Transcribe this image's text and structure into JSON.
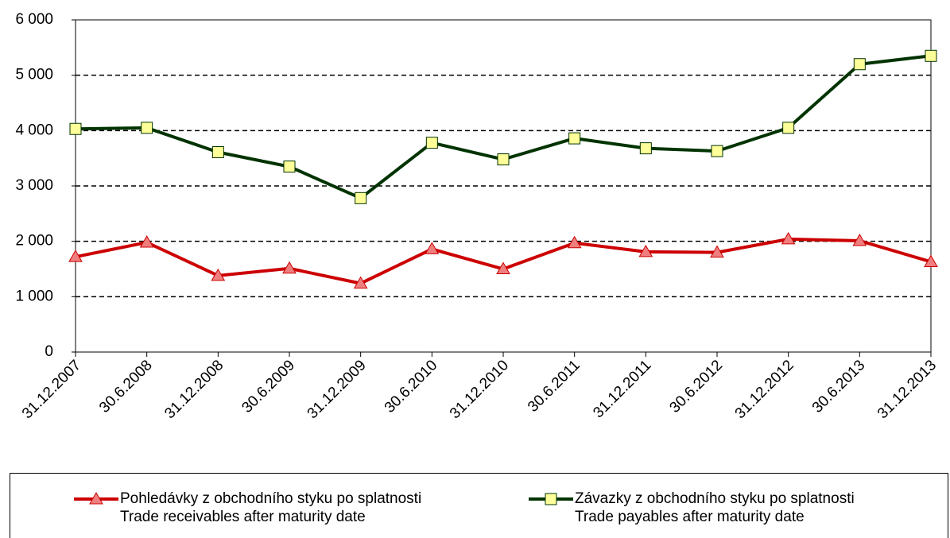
{
  "chart_data": {
    "type": "line",
    "categories": [
      "31.12.2007",
      "30.6.2008",
      "31.12.2008",
      "30.6.2009",
      "31.12.2009",
      "30.6.2010",
      "31.12.2010",
      "30.6.2011",
      "31.12.2011",
      "30.6.2012",
      "31.12.2012",
      "30.6.2013",
      "31.12.2013"
    ],
    "series": [
      {
        "name": "Pohledávky z obchodního styku po splatnosti\nTrade receivables after maturity date",
        "color": "#cc0000",
        "marker": "triangle",
        "marker_color": "#ef7f7f",
        "values": [
          1720,
          1980,
          1380,
          1510,
          1240,
          1860,
          1500,
          1970,
          1810,
          1800,
          2040,
          2010,
          1630
        ]
      },
      {
        "name": "Závazky z obchodního styku po splatnosti\nTrade payables after maturity date",
        "color": "#003300",
        "marker": "square",
        "marker_color": "#ffff99",
        "values": [
          4030,
          4050,
          3610,
          3350,
          2780,
          3780,
          3480,
          3860,
          3680,
          3630,
          4050,
          5200,
          5350
        ]
      }
    ],
    "ylim": [
      0,
      6000
    ],
    "yticks": [
      0,
      {
        "value": 1000,
        "label": "1 000"
      },
      {
        "value": 2000,
        "label": "2 000"
      },
      {
        "value": 3000,
        "label": "3 000"
      },
      {
        "value": 4000,
        "label": "4 000"
      },
      {
        "value": 5000,
        "label": "5 000"
      },
      {
        "value": 6000,
        "label": "6 000"
      }
    ],
    "grid": true,
    "legend": "bottom"
  }
}
